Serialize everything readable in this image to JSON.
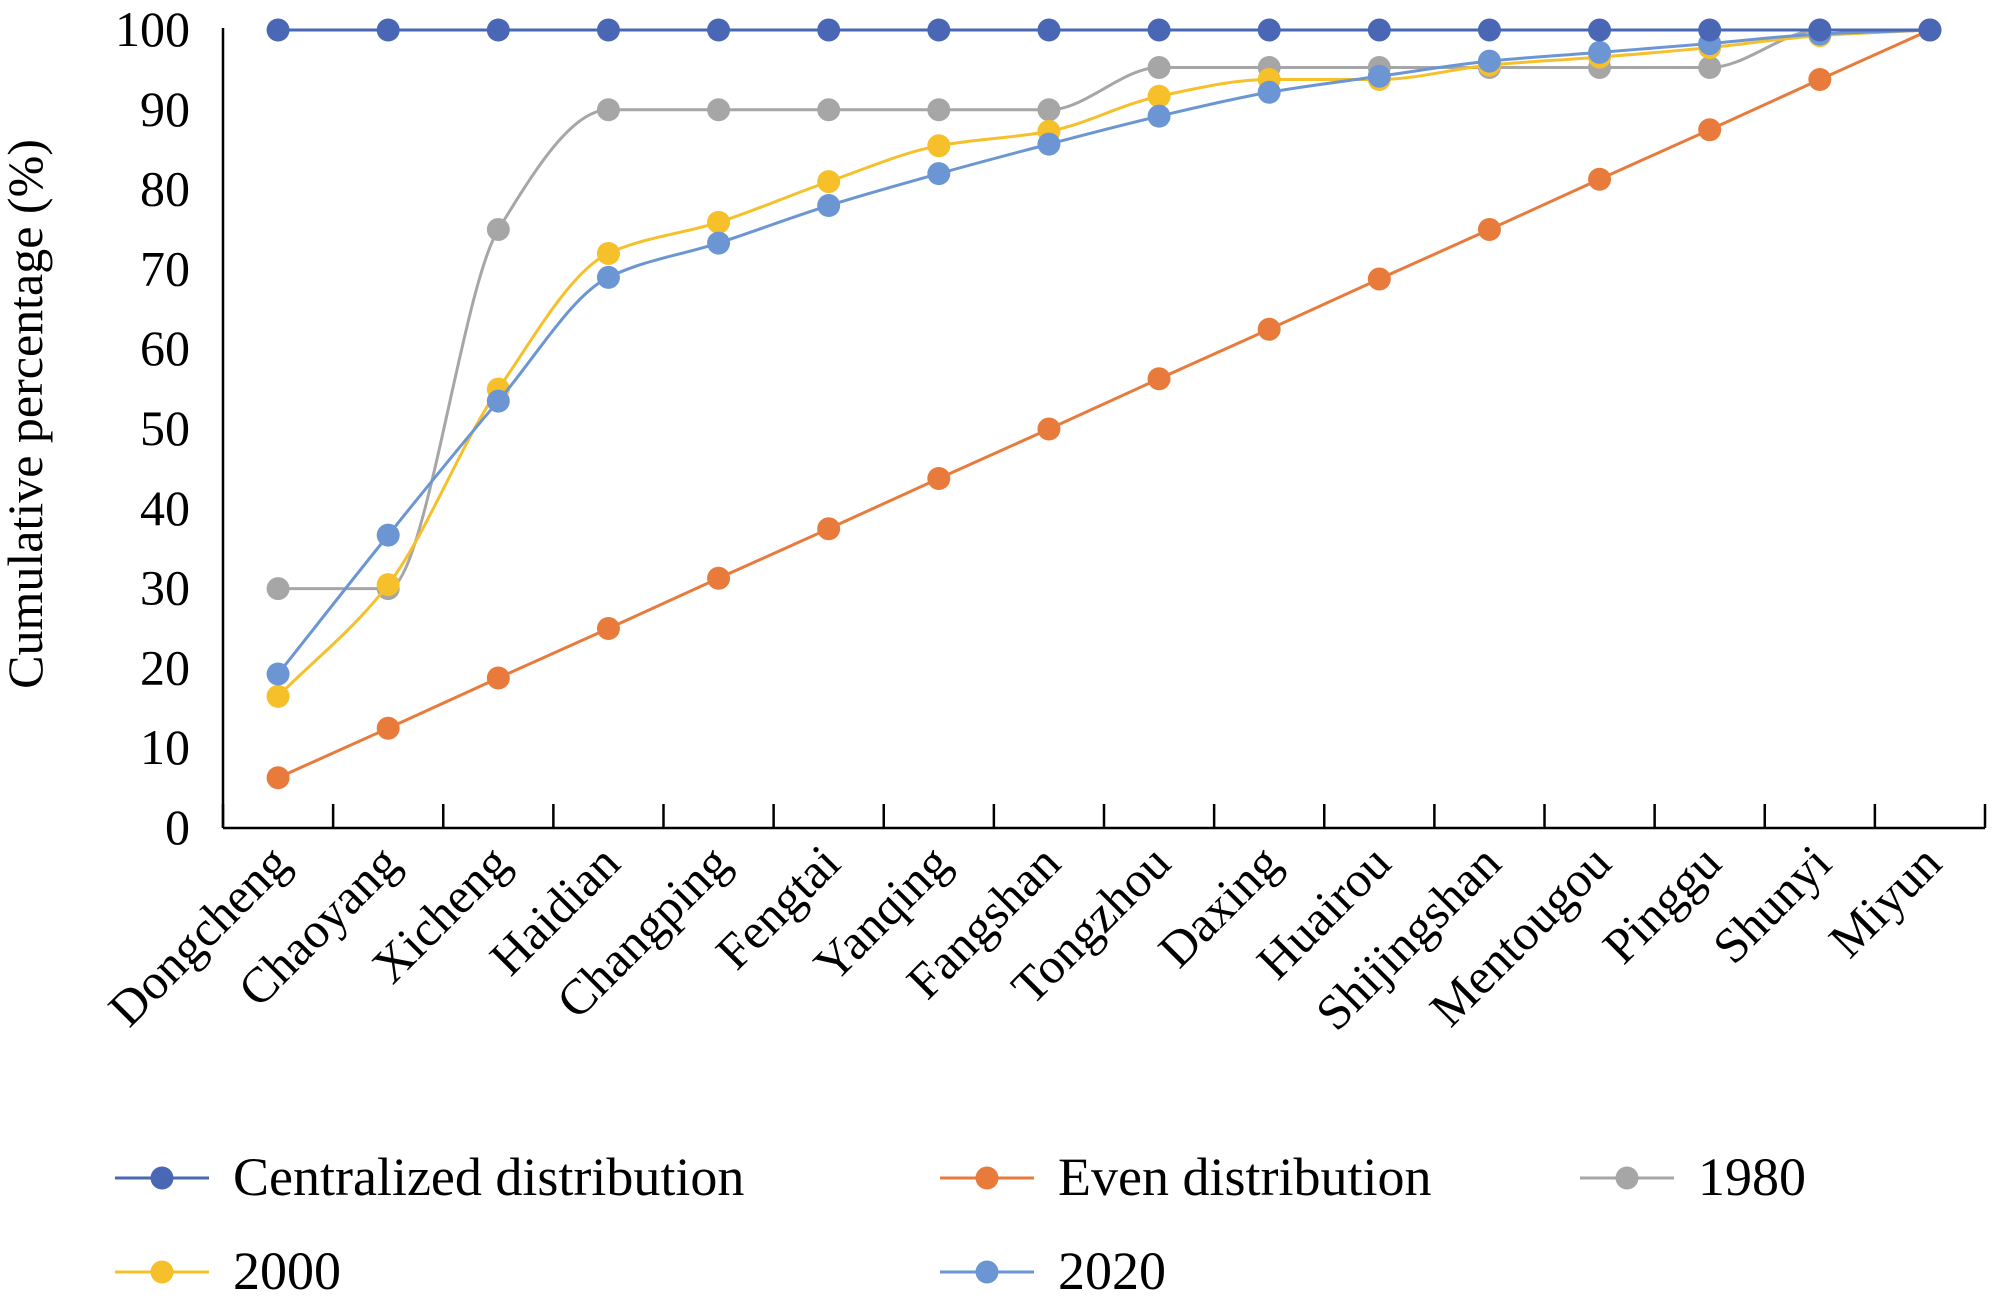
{
  "chart_data": {
    "type": "line",
    "title": "",
    "xlabel": "",
    "ylabel": "Cumulative percentage (%)",
    "ylim": [
      0,
      100
    ],
    "yticks": [
      0,
      10,
      20,
      30,
      40,
      50,
      60,
      70,
      80,
      90,
      100
    ],
    "grid": false,
    "legend_position": "bottom",
    "categories": [
      "Dongcheng",
      "Chaoyang",
      "Xicheng",
      "Haidian",
      "Changping",
      "Fengtai",
      "Yanqing",
      "Fangshan",
      "Tongzhou",
      "Daxing",
      "Huairou",
      "Shijingshan",
      "Mentougou",
      "Pinggu",
      "Shunyi",
      "Miyun"
    ],
    "series": [
      {
        "name": "Centralized distribution",
        "color": "#4a67b6",
        "smooth": false,
        "values": [
          100,
          100,
          100,
          100,
          100,
          100,
          100,
          100,
          100,
          100,
          100,
          100,
          100,
          100,
          100,
          100
        ]
      },
      {
        "name": "Even distribution",
        "color": "#e87b3c",
        "smooth": false,
        "values": [
          6.3,
          12.5,
          18.8,
          25.0,
          31.3,
          37.5,
          43.8,
          50.0,
          56.3,
          62.5,
          68.8,
          75.0,
          81.3,
          87.5,
          93.8,
          100
        ]
      },
      {
        "name": "1980",
        "color": "#a6a6a6",
        "smooth": true,
        "values": [
          30,
          30,
          75,
          90,
          90,
          90,
          90,
          90,
          95.3,
          95.3,
          95.3,
          95.3,
          95.3,
          95.3,
          100,
          100
        ]
      },
      {
        "name": "2000",
        "color": "#f6c02b",
        "smooth": true,
        "values": [
          16.5,
          30.5,
          55,
          72,
          75.9,
          81,
          85.5,
          87.3,
          91.7,
          93.8,
          93.8,
          95.6,
          96.6,
          97.8,
          99.3,
          100
        ]
      },
      {
        "name": "2020",
        "color": "#6b96d3",
        "smooth": true,
        "values": [
          19.3,
          36.7,
          53.5,
          69,
          73.3,
          78,
          82,
          85.7,
          89.2,
          92.2,
          94.2,
          96.1,
          97.2,
          98.3,
          99.5,
          100
        ]
      }
    ]
  }
}
